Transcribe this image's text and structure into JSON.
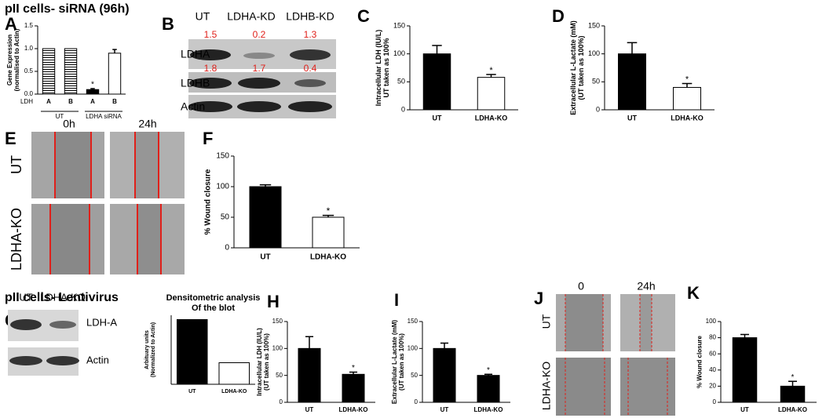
{
  "headers": {
    "siRNA": "pII cells- siRNA (96h)",
    "lentivirus": "pII cells- Lentivirus"
  },
  "panels": [
    "A",
    "B",
    "C",
    "D",
    "E",
    "F",
    "G",
    "H",
    "I",
    "J",
    "K"
  ],
  "blot_B": {
    "lanes": [
      "UT",
      "LDHA-KD",
      "LDHB-KD"
    ],
    "rows": [
      "LDHA",
      "LDHB",
      "Actin"
    ],
    "ldha_ratios": [
      1.5,
      0.2,
      1.3
    ],
    "ldhb_ratios": [
      1.8,
      1.7,
      0.4
    ]
  },
  "wound_E": {
    "times": [
      "0h",
      "24h"
    ],
    "conditions": [
      "UT",
      "LDHA-KO"
    ]
  },
  "blot_G": {
    "lanes": [
      "UT",
      "LDHA-KO"
    ],
    "rows": [
      "LDH-A",
      "Actin"
    ]
  },
  "wound_J": {
    "times": [
      "0",
      "24h"
    ],
    "conditions": [
      "UT",
      "LDHA-KO"
    ]
  },
  "chart_data": [
    {
      "type": "bar",
      "ylabel": [
        "Gene Expression",
        "(normalised to Actin)"
      ],
      "x_prefix": "LDH",
      "categories": [
        "A",
        "B",
        "A",
        "B"
      ],
      "groups": [
        "UT",
        "LDHA siRNA"
      ],
      "values": [
        1,
        1,
        0.1,
        0.9
      ],
      "errors": [
        null,
        null,
        0.02,
        0.08
      ],
      "fills": [
        "#ffffff",
        "#ffffff",
        "#000000",
        "#ffffff"
      ],
      "hatch": [
        true,
        true,
        false,
        false
      ],
      "significance": [
        null,
        null,
        "*",
        null
      ],
      "ylim": [
        0,
        1.5
      ],
      "yticks": [
        {
          "value": 0,
          "label": "0.0"
        },
        {
          "value": 0.5,
          "label": "0.5"
        },
        {
          "value": 1,
          "label": "1.0"
        },
        {
          "value": 1.5,
          "label": "1.5"
        }
      ],
      "grid": false
    },
    {
      "type": "bar",
      "ylabel": [
        "Intracellular LDH (IU/L)",
        "UT taken as 100%"
      ],
      "categories": [
        "UT",
        "LDHA-KO"
      ],
      "values": [
        100,
        58
      ],
      "errors": [
        15,
        5
      ],
      "fills": [
        "#000000",
        "#ffffff"
      ],
      "significance": [
        null,
        "*"
      ],
      "ylim": [
        0,
        150
      ],
      "yticks": [
        0,
        50,
        100,
        150
      ],
      "grid": false
    },
    {
      "type": "bar",
      "ylabel": [
        "Extracellular L-Lactate (mM)",
        "(UT taken as 100%)"
      ],
      "categories": [
        "UT",
        "LDHA-KO"
      ],
      "values": [
        100,
        40
      ],
      "errors": [
        20,
        7
      ],
      "fills": [
        "#000000",
        "#ffffff"
      ],
      "significance": [
        null,
        "*"
      ],
      "ylim": [
        0,
        150
      ],
      "yticks": [
        0,
        50,
        100,
        150
      ],
      "grid": false
    },
    {
      "type": "bar",
      "ylabel": [
        "% Wound closure"
      ],
      "categories": [
        "UT",
        "LDHA-KO"
      ],
      "values": [
        100,
        50
      ],
      "errors": [
        3,
        3
      ],
      "fills": [
        "#000000",
        "#ffffff"
      ],
      "significance": [
        null,
        "*"
      ],
      "ylim": [
        0,
        150
      ],
      "yticks": [
        0,
        50,
        100,
        150
      ],
      "grid": false
    },
    {
      "type": "bar",
      "title": [
        "Densitometric analysis",
        "Of the blot"
      ],
      "ylabel": [
        "Arbituary units",
        "(Normalized to Actin)"
      ],
      "categories": [
        "UT",
        "LDHA-KO"
      ],
      "values": [
        1.5,
        0.5
      ],
      "fills": [
        "#000000",
        "#ffffff"
      ],
      "ylim": [
        0,
        1.6
      ],
      "grid": false
    },
    {
      "type": "bar",
      "ylabel": [
        "Intracellular LDH (IU/L)",
        "(UT taken as 100%)"
      ],
      "categories": [
        "UT",
        "LDHA-KO"
      ],
      "values": [
        100,
        52
      ],
      "errors": [
        22,
        4
      ],
      "fills": [
        "#000000",
        "#000000"
      ],
      "significance": [
        null,
        "*"
      ],
      "ylim": [
        0,
        150
      ],
      "yticks": [
        0,
        50,
        100,
        150
      ],
      "grid": false
    },
    {
      "type": "bar",
      "ylabel": [
        "Extracellular L-Lactate (mM)",
        "(UT taken as 100%)"
      ],
      "categories": [
        "UT",
        "LDHA-KO"
      ],
      "values": [
        100,
        50
      ],
      "errors": [
        10,
        2
      ],
      "fills": [
        "#000000",
        "#000000"
      ],
      "significance": [
        null,
        "*"
      ],
      "ylim": [
        0,
        150
      ],
      "yticks": [
        0,
        50,
        100,
        150
      ],
      "grid": false
    },
    {
      "type": "bar",
      "ylabel": [
        "% Wound closure"
      ],
      "categories": [
        "UT",
        "LDHA-KO"
      ],
      "values": [
        80,
        20
      ],
      "errors": [
        4,
        6
      ],
      "fills": [
        "#000000",
        "#000000"
      ],
      "significance": [
        null,
        "*"
      ],
      "ylim": [
        0,
        100
      ],
      "yticks": [
        0,
        20,
        40,
        60,
        80,
        100
      ],
      "grid": false
    }
  ]
}
